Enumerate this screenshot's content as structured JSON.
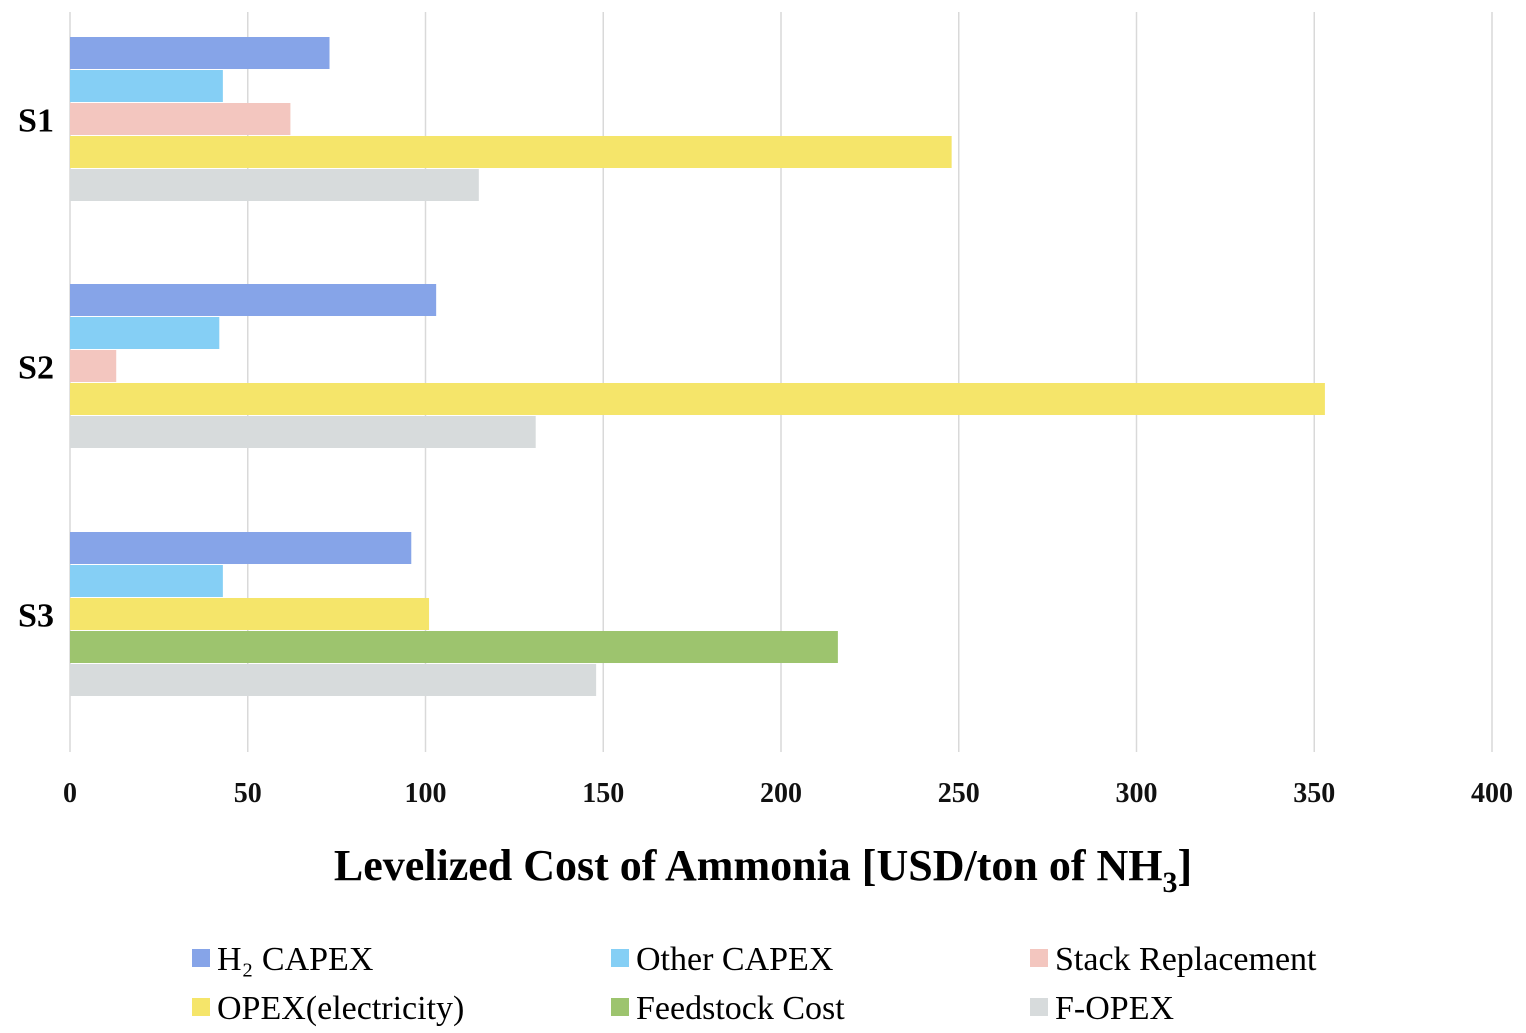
{
  "chart_data": {
    "type": "bar",
    "orientation": "horizontal",
    "categories": [
      "S1",
      "S2",
      "S3"
    ],
    "series": [
      {
        "name": "H₂ CAPEX",
        "color": "#86a4e8",
        "values": [
          73,
          103,
          96
        ]
      },
      {
        "name": "Other CAPEX",
        "color": "#85cff5",
        "values": [
          43,
          42,
          43
        ]
      },
      {
        "name": "Stack Replacement",
        "color": "#f3c6bf",
        "values": [
          62,
          13,
          null
        ]
      },
      {
        "name": "OPEX(electricity)",
        "color": "#f5e56a",
        "values": [
          248,
          353,
          101
        ]
      },
      {
        "name": "Feedstock Cost",
        "color": "#9dc46e",
        "values": [
          null,
          null,
          216
        ]
      },
      {
        "name": "F-OPEX",
        "color": "#d7dbdc",
        "values": [
          115,
          131,
          148
        ]
      }
    ],
    "xlabel": "Levelized Cost of Ammonia [USD/ton of NH",
    "xlabel_sub": "3",
    "xlabel_end": "]",
    "ylabel": "",
    "xlim": [
      0,
      400
    ],
    "xticks": [
      0,
      50,
      100,
      150,
      200,
      250,
      300,
      350,
      400
    ],
    "grid": "vertical",
    "legend_position": "bottom"
  }
}
